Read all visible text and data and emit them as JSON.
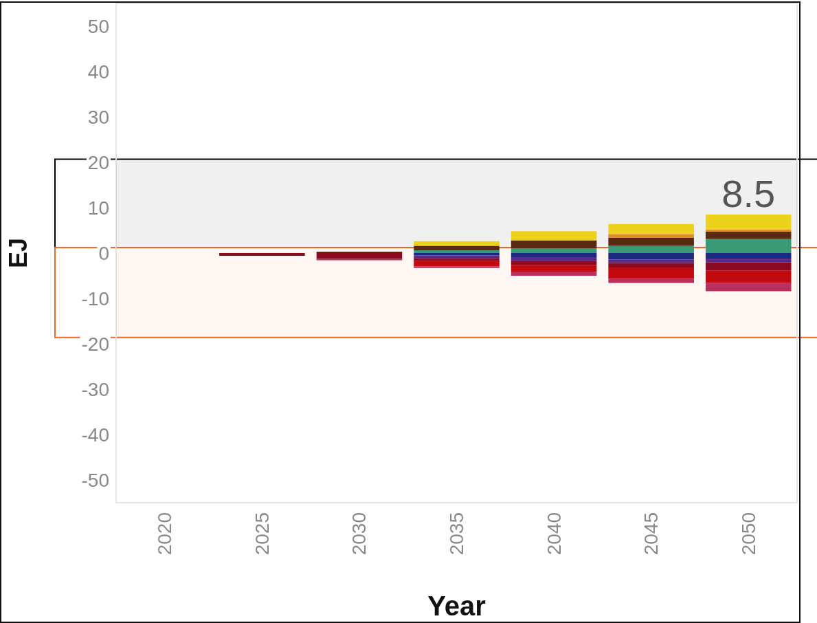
{
  "chart_data": {
    "type": "bar",
    "stacked": true,
    "xlabel": "Year",
    "ylabel": "EJ",
    "categories": [
      "2020",
      "2025",
      "2030",
      "2035",
      "2040",
      "2045",
      "2050"
    ],
    "series": [
      {
        "color": "#3a9a78",
        "values": [
          0,
          0,
          0,
          0.6,
          1.0,
          1.6,
          3.2
        ]
      },
      {
        "color": "#5a2a10",
        "values": [
          0,
          0,
          0.3,
          1.0,
          1.8,
          1.8,
          1.5
        ]
      },
      {
        "color": "#e0902a",
        "values": [
          0,
          0,
          0,
          0,
          0,
          0.8,
          0.5
        ]
      },
      {
        "color": "#ecd21c",
        "values": [
          0,
          0,
          0,
          1.0,
          2.0,
          2.2,
          3.3
        ]
      },
      {
        "color": "#1a2a80",
        "values": [
          0,
          0,
          0,
          -0.5,
          -0.9,
          -1.4,
          -1.2
        ]
      },
      {
        "color": "#5a2a8a",
        "values": [
          0,
          0,
          0,
          -0.6,
          -0.8,
          -0.8,
          -0.9
        ]
      },
      {
        "color": "#8a0a20",
        "values": [
          0,
          -0.6,
          -1.3,
          -0.6,
          -1.0,
          -1.0,
          -1.8
        ]
      },
      {
        "color": "#c00a10",
        "values": [
          0,
          0,
          0,
          -1.2,
          -1.5,
          -2.5,
          -2.7
        ]
      },
      {
        "color": "#b83060",
        "values": [
          0,
          0,
          -0.3,
          -0.4,
          -0.8,
          -0.9,
          -1.8
        ]
      }
    ],
    "annotations": [
      {
        "text": "8.5",
        "x": "2050",
        "y": 8.5
      }
    ],
    "ylim": [
      -55,
      55
    ],
    "yticks": [
      -50,
      -40,
      -30,
      -20,
      -10,
      0,
      10,
      20,
      30,
      40,
      50
    ],
    "bands": [
      {
        "axis": "y",
        "from": 1.2,
        "to": 20.7,
        "color": "#000000"
      },
      {
        "axis": "y",
        "from": -18.6,
        "to": 1.2,
        "color": "#f26a2a"
      }
    ],
    "grid": false
  }
}
